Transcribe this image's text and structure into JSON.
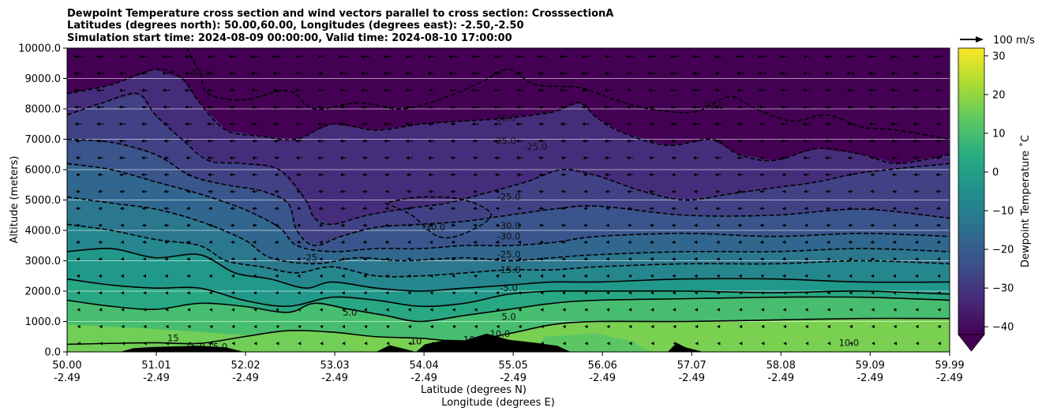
{
  "chart_data": {
    "type": "contour",
    "title_lines": [
      "Dewpoint Temperature cross section and wind vectors parallel to cross section: CrosssectionA",
      "Latitudes (degrees north): 50.00,60.00, Longitudes (degrees east): -2.50,-2.50",
      "Simulation start time: 2024-08-09 00:00:00, Valid time: 2024-08-10 17:00:00"
    ],
    "ylabel": "Altitude (meters)",
    "xlabel_lines": [
      "Latitude (degrees N)",
      "Longitude (degrees E)"
    ],
    "ylim": [
      0,
      10000
    ],
    "xlim": [
      50.0,
      59.99
    ],
    "y_ticks": [
      "0.0",
      "1000.0",
      "2000.0",
      "3000.0",
      "4000.0",
      "5000.0",
      "6000.0",
      "7000.0",
      "8000.0",
      "9000.0",
      "10000.0"
    ],
    "x_ticks": [
      {
        "lat": "50.00",
        "lon": "-2.49"
      },
      {
        "lat": "51.01",
        "lon": "-2.49"
      },
      {
        "lat": "52.02",
        "lon": "-2.49"
      },
      {
        "lat": "53.03",
        "lon": "-2.49"
      },
      {
        "lat": "54.04",
        "lon": "-2.49"
      },
      {
        "lat": "55.05",
        "lon": "-2.49"
      },
      {
        "lat": "56.06",
        "lon": "-2.49"
      },
      {
        "lat": "57.07",
        "lon": "-2.49"
      },
      {
        "lat": "58.08",
        "lon": "-2.49"
      },
      {
        "lat": "59.09",
        "lon": "-2.49"
      },
      {
        "lat": "59.99",
        "lon": "-2.49"
      }
    ],
    "grid": "horizontal",
    "colorbar": {
      "label": "Dewpoint Temperature ˚C",
      "ticks": [
        "30",
        "20",
        "10",
        "0",
        "−10",
        "−20",
        "−30",
        "−40"
      ],
      "range": [
        -42,
        32
      ],
      "extend": "min",
      "colormap": "viridis"
    },
    "quiver_key": {
      "label": "100 m/s"
    },
    "contour_labels": [
      {
        "text": "-40.0",
        "lat": 51.5,
        "alt": 9100
      },
      {
        "text": "-40.0",
        "lat": 57.3,
        "alt": 8000
      },
      {
        "text": "-30.0",
        "lat": 54.95,
        "alt": 7600
      },
      {
        "text": "-25.0",
        "lat": 54.95,
        "alt": 6850
      },
      {
        "text": "-25.0",
        "lat": 55.3,
        "alt": 6650
      },
      {
        "text": "-25.0",
        "lat": 55.0,
        "alt": 5000
      },
      {
        "text": "-30.0",
        "lat": 55.0,
        "alt": 4050
      },
      {
        "text": "-30.0",
        "lat": 55.0,
        "alt": 3700
      },
      {
        "text": "-30.0",
        "lat": 54.15,
        "alt": 4000
      },
      {
        "text": "-25.0",
        "lat": 55.0,
        "alt": 3100
      },
      {
        "text": "-25",
        "lat": 52.75,
        "alt": 3000
      },
      {
        "text": "-15.0",
        "lat": 55.0,
        "alt": 2600
      },
      {
        "text": "-5.0",
        "lat": 55.0,
        "alt": 2000
      },
      {
        "text": "5.0",
        "lat": 53.2,
        "alt": 1200
      },
      {
        "text": "5.0",
        "lat": 55.0,
        "alt": 1050
      },
      {
        "text": "10.0",
        "lat": 54.9,
        "alt": 500
      },
      {
        "text": "10",
        "lat": 54.55,
        "alt": 300
      },
      {
        "text": "10",
        "lat": 53.95,
        "alt": 250
      },
      {
        "text": "10.0",
        "lat": 58.85,
        "alt": 200
      },
      {
        "text": "15",
        "lat": 51.2,
        "alt": 350
      },
      {
        "text": "15.0",
        "lat": 51.7,
        "alt": 60
      },
      {
        "text": "15.0",
        "lat": 51.45,
        "alt": 60
      }
    ],
    "terrain": [
      {
        "lat": 50.0,
        "alt": 0
      },
      {
        "lat": 50.6,
        "alt": 0
      },
      {
        "lat": 50.75,
        "alt": 120
      },
      {
        "lat": 50.95,
        "alt": 160
      },
      {
        "lat": 51.2,
        "alt": 180
      },
      {
        "lat": 51.5,
        "alt": 200
      },
      {
        "lat": 51.8,
        "alt": 150
      },
      {
        "lat": 52.0,
        "alt": 0
      },
      {
        "lat": 53.5,
        "alt": 0
      },
      {
        "lat": 53.65,
        "alt": 220
      },
      {
        "lat": 53.75,
        "alt": 150
      },
      {
        "lat": 53.95,
        "alt": 0
      },
      {
        "lat": 54.05,
        "alt": 250
      },
      {
        "lat": 54.3,
        "alt": 400
      },
      {
        "lat": 54.5,
        "alt": 380
      },
      {
        "lat": 54.75,
        "alt": 600
      },
      {
        "lat": 55.0,
        "alt": 400
      },
      {
        "lat": 55.3,
        "alt": 300
      },
      {
        "lat": 55.55,
        "alt": 200
      },
      {
        "lat": 55.7,
        "alt": 0
      },
      {
        "lat": 56.8,
        "alt": 0
      },
      {
        "lat": 56.9,
        "alt": 300
      },
      {
        "lat": 57.0,
        "alt": 150
      },
      {
        "lat": 57.2,
        "alt": 0
      },
      {
        "lat": 59.99,
        "alt": 0
      }
    ],
    "contours_solid": [
      {
        "level": 15,
        "points": [
          [
            50.0,
            250
          ],
          [
            50.5,
            280
          ],
          [
            51.0,
            300
          ],
          [
            51.5,
            280
          ],
          [
            52.0,
            500
          ],
          [
            52.5,
            700
          ],
          [
            53.0,
            650
          ],
          [
            53.5,
            500
          ],
          [
            54.0,
            450
          ],
          [
            54.5,
            350
          ],
          [
            55.0,
            600
          ],
          [
            55.5,
            900
          ],
          [
            56.0,
            1000
          ],
          [
            57.0,
            1000
          ],
          [
            58.0,
            1050
          ],
          [
            59.0,
            1100
          ],
          [
            59.99,
            1100
          ]
        ]
      },
      {
        "level": 5,
        "points": [
          [
            50.0,
            1700
          ],
          [
            50.5,
            1500
          ],
          [
            51.0,
            1400
          ],
          [
            51.5,
            1600
          ],
          [
            52.0,
            1500
          ],
          [
            52.5,
            1300
          ],
          [
            52.8,
            1600
          ],
          [
            53.2,
            1400
          ],
          [
            53.6,
            1200
          ],
          [
            54.0,
            1000
          ],
          [
            54.5,
            1200
          ],
          [
            55.0,
            1400
          ],
          [
            55.5,
            1600
          ],
          [
            56.0,
            1700
          ],
          [
            57.0,
            1750
          ],
          [
            58.0,
            1800
          ],
          [
            59.0,
            1800
          ],
          [
            59.99,
            1700
          ]
        ]
      },
      {
        "level": 0,
        "points": [
          [
            50.0,
            2400
          ],
          [
            50.5,
            2200
          ],
          [
            51.0,
            2100
          ],
          [
            51.5,
            2100
          ],
          [
            52.0,
            1700
          ],
          [
            52.5,
            1500
          ],
          [
            53.0,
            1800
          ],
          [
            53.5,
            1700
          ],
          [
            54.0,
            1500
          ],
          [
            54.5,
            1600
          ],
          [
            55.0,
            1900
          ],
          [
            55.5,
            2000
          ],
          [
            56.0,
            2000
          ],
          [
            57.0,
            2000
          ],
          [
            58.0,
            1950
          ],
          [
            59.0,
            2000
          ],
          [
            59.99,
            1900
          ]
        ]
      },
      {
        "level": -5,
        "points": [
          [
            50.0,
            3300
          ],
          [
            50.5,
            3400
          ],
          [
            51.0,
            3100
          ],
          [
            51.5,
            3200
          ],
          [
            51.9,
            2600
          ],
          [
            52.3,
            2400
          ],
          [
            52.7,
            2100
          ],
          [
            53.0,
            2300
          ],
          [
            53.5,
            2100
          ],
          [
            54.0,
            2000
          ],
          [
            54.5,
            2100
          ],
          [
            55.0,
            2200
          ],
          [
            55.5,
            2300
          ],
          [
            56.0,
            2300
          ],
          [
            57.0,
            2400
          ],
          [
            58.0,
            2400
          ],
          [
            59.0,
            2300
          ],
          [
            59.99,
            2300
          ]
        ]
      }
    ],
    "contours_dashed": [
      {
        "level": -10,
        "points": [
          [
            50.0,
            4200
          ],
          [
            50.5,
            4000
          ],
          [
            51.0,
            3700
          ],
          [
            51.5,
            3500
          ],
          [
            51.8,
            3000
          ],
          [
            52.2,
            2800
          ],
          [
            52.6,
            2600
          ],
          [
            53.0,
            2800
          ],
          [
            53.5,
            2500
          ],
          [
            54.0,
            2500
          ],
          [
            54.5,
            2600
          ],
          [
            55.0,
            2700
          ],
          [
            55.5,
            2700
          ],
          [
            56.0,
            2800
          ],
          [
            57.0,
            2900
          ],
          [
            58.0,
            2900
          ],
          [
            59.0,
            3000
          ],
          [
            59.99,
            2900
          ]
        ]
      },
      {
        "level": -15,
        "points": [
          [
            50.0,
            5100
          ],
          [
            50.5,
            4900
          ],
          [
            51.0,
            4700
          ],
          [
            51.5,
            4300
          ],
          [
            52.0,
            3700
          ],
          [
            52.3,
            3100
          ],
          [
            52.8,
            2900
          ],
          [
            53.3,
            3100
          ],
          [
            53.8,
            3000
          ],
          [
            54.5,
            3100
          ],
          [
            55.0,
            3000
          ],
          [
            55.5,
            3100
          ],
          [
            56.0,
            3200
          ],
          [
            57.0,
            3300
          ],
          [
            58.0,
            3300
          ],
          [
            59.0,
            3400
          ],
          [
            59.99,
            3300
          ]
        ]
      },
      {
        "level": -20,
        "points": [
          [
            50.0,
            6200
          ],
          [
            50.5,
            6000
          ],
          [
            51.0,
            5600
          ],
          [
            51.5,
            5200
          ],
          [
            52.0,
            4700
          ],
          [
            52.4,
            4100
          ],
          [
            52.6,
            3500
          ],
          [
            53.0,
            3300
          ],
          [
            53.5,
            3400
          ],
          [
            54.0,
            3400
          ],
          [
            54.5,
            3500
          ],
          [
            55.0,
            3500
          ],
          [
            55.5,
            3600
          ],
          [
            56.0,
            3800
          ],
          [
            57.0,
            3900
          ],
          [
            58.0,
            3800
          ],
          [
            59.0,
            3900
          ],
          [
            59.99,
            3800
          ]
        ]
      },
      {
        "level": -25,
        "points": [
          [
            50.0,
            7000
          ],
          [
            50.5,
            6900
          ],
          [
            51.0,
            6500
          ],
          [
            51.4,
            5800
          ],
          [
            51.8,
            5500
          ],
          [
            52.2,
            5300
          ],
          [
            52.5,
            4900
          ],
          [
            52.6,
            4000
          ],
          [
            52.8,
            3500
          ],
          [
            53.1,
            3800
          ],
          [
            53.5,
            4100
          ],
          [
            54.0,
            4200
          ],
          [
            54.5,
            4300
          ],
          [
            55.0,
            4500
          ],
          [
            55.5,
            4700
          ],
          [
            56.0,
            4800
          ],
          [
            57.0,
            4500
          ],
          [
            58.0,
            4500
          ],
          [
            59.0,
            4700
          ],
          [
            59.99,
            4400
          ]
        ]
      },
      {
        "level": -30,
        "points": [
          [
            50.0,
            7800
          ],
          [
            50.4,
            8200
          ],
          [
            50.8,
            8500
          ],
          [
            51.0,
            7800
          ],
          [
            51.3,
            7000
          ],
          [
            51.6,
            6300
          ],
          [
            52.0,
            6200
          ],
          [
            52.4,
            6000
          ],
          [
            52.7,
            5000
          ],
          [
            52.8,
            4400
          ],
          [
            53.0,
            4200
          ],
          [
            53.4,
            4500
          ],
          [
            53.8,
            4700
          ],
          [
            54.3,
            4900
          ],
          [
            54.7,
            5200
          ],
          [
            55.2,
            5600
          ],
          [
            55.6,
            6000
          ],
          [
            56.0,
            5800
          ],
          [
            56.5,
            5300
          ],
          [
            57.0,
            5000
          ],
          [
            57.5,
            5200
          ],
          [
            58.0,
            5400
          ],
          [
            58.5,
            5600
          ],
          [
            59.0,
            5900
          ],
          [
            59.99,
            6200
          ]
        ]
      },
      {
        "level": -30,
        "points": [
          [
            53.6,
            4900
          ],
          [
            53.9,
            4500
          ],
          [
            54.2,
            3800
          ],
          [
            54.5,
            3900
          ],
          [
            54.8,
            4500
          ],
          [
            54.5,
            5000
          ],
          [
            54.0,
            5100
          ],
          [
            53.6,
            4900
          ]
        ]
      },
      {
        "level": -35,
        "points": [
          [
            50.0,
            8500
          ],
          [
            50.5,
            8800
          ],
          [
            51.0,
            9300
          ],
          [
            51.3,
            9000
          ],
          [
            51.5,
            8200
          ],
          [
            51.8,
            7300
          ],
          [
            52.2,
            7100
          ],
          [
            52.6,
            7000
          ],
          [
            53.0,
            7500
          ],
          [
            53.5,
            7300
          ],
          [
            54.0,
            7500
          ],
          [
            54.5,
            7600
          ],
          [
            55.0,
            7700
          ],
          [
            55.5,
            7900
          ],
          [
            55.8,
            8200
          ],
          [
            56.0,
            7700
          ],
          [
            56.3,
            7200
          ],
          [
            56.8,
            6800
          ],
          [
            57.3,
            7000
          ],
          [
            57.6,
            6500
          ],
          [
            58.0,
            6300
          ],
          [
            58.5,
            6700
          ],
          [
            59.0,
            6500
          ],
          [
            59.4,
            6200
          ],
          [
            59.99,
            6500
          ]
        ]
      },
      {
        "level": -40,
        "points": [
          [
            51.35,
            10000
          ],
          [
            51.5,
            9200
          ],
          [
            51.6,
            8500
          ],
          [
            52.0,
            8300
          ],
          [
            52.5,
            8600
          ],
          [
            52.8,
            8000
          ],
          [
            53.3,
            8200
          ],
          [
            53.8,
            8000
          ],
          [
            54.3,
            8400
          ],
          [
            54.7,
            8900
          ],
          [
            55.0,
            9300
          ],
          [
            55.3,
            8800
          ],
          [
            55.8,
            8700
          ],
          [
            56.2,
            8300
          ],
          [
            56.6,
            8000
          ],
          [
            57.1,
            7900
          ],
          [
            57.5,
            8400
          ],
          [
            57.8,
            8000
          ],
          [
            58.2,
            7600
          ],
          [
            58.6,
            7800
          ],
          [
            59.0,
            7400
          ],
          [
            59.4,
            7300
          ],
          [
            59.99,
            7000
          ]
        ]
      }
    ]
  }
}
